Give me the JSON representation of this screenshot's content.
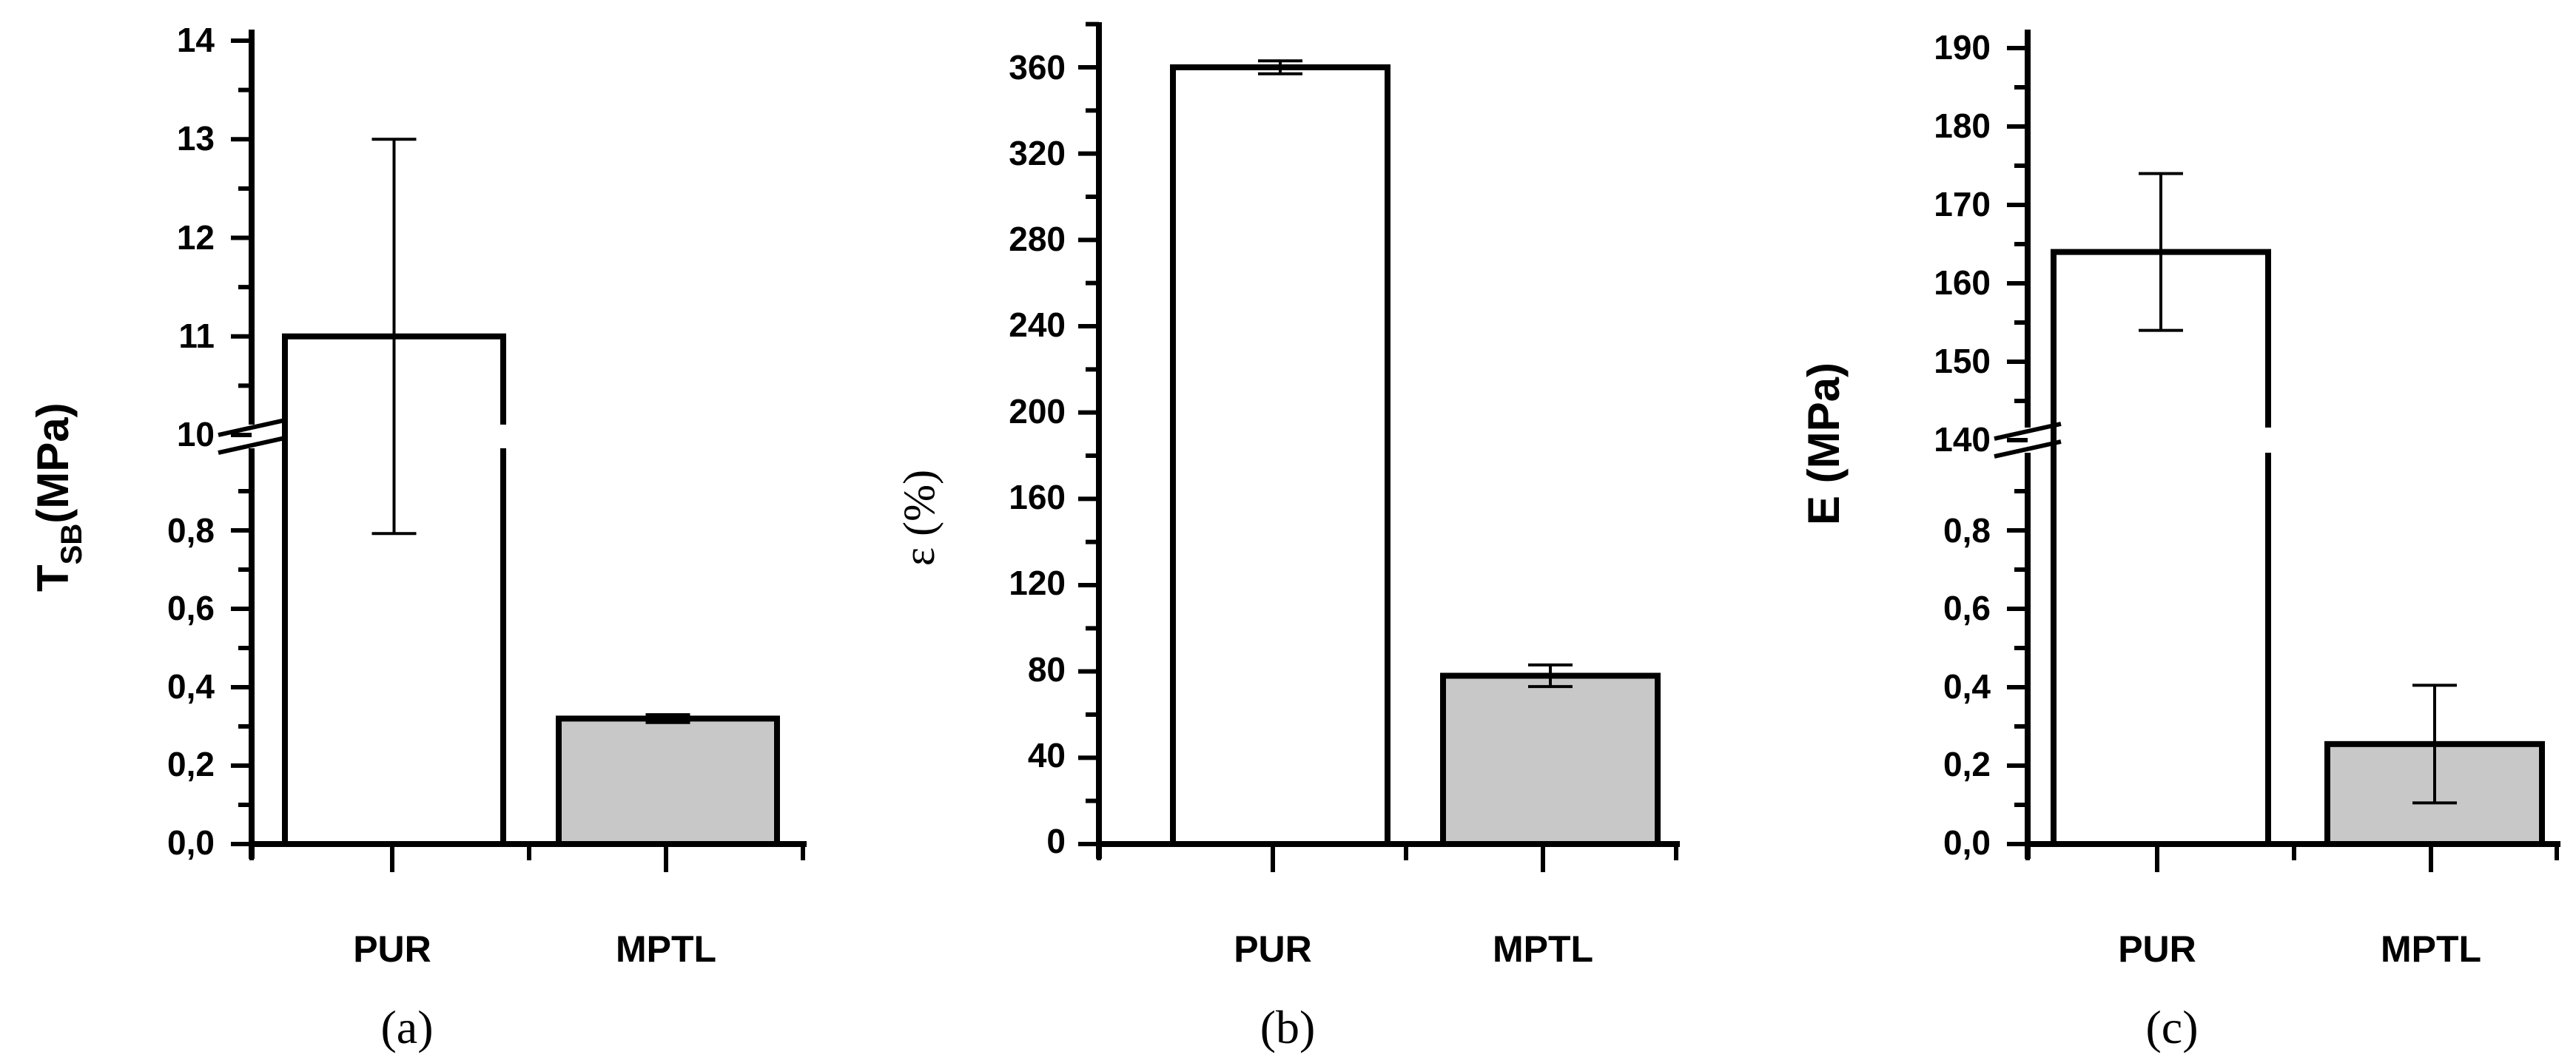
{
  "chart_data": [
    {
      "type": "bar",
      "panel_label": "(a)",
      "categories": [
        "PUR",
        "MPTL"
      ],
      "values": [
        11,
        0.32
      ],
      "errors": [
        2,
        0.01
      ],
      "colors": [
        "#ffffff",
        "#c8c8c8"
      ],
      "ylabel_main": "T",
      "ylabel_sub": "SB",
      "ylabel_unit": "(MPa)",
      "axis_break": true,
      "lower_range": [
        0,
        1.0
      ],
      "upper_range": [
        10,
        14
      ],
      "lower_ticks": [
        "0,0",
        "0,2",
        "0,4",
        "0,6",
        "0,8"
      ],
      "upper_ticks": [
        "10",
        "11",
        "12",
        "13",
        "14"
      ]
    },
    {
      "type": "bar",
      "panel_label": "(b)",
      "categories": [
        "PUR",
        "MPTL"
      ],
      "values": [
        360,
        78
      ],
      "errors": [
        3,
        5
      ],
      "colors": [
        "#ffffff",
        "#c8c8c8"
      ],
      "ylabel": "ε (%)",
      "ylim": [
        0,
        380
      ],
      "ticks": [
        "0",
        "40",
        "80",
        "120",
        "160",
        "200",
        "240",
        "280",
        "320",
        "360"
      ]
    },
    {
      "type": "bar",
      "panel_label": "(c)",
      "categories": [
        "PUR",
        "MPTL"
      ],
      "values": [
        164,
        0.255
      ],
      "errors": [
        10,
        0.15
      ],
      "colors": [
        "#ffffff",
        "#c8c8c8"
      ],
      "ylabel": "E (MPa)",
      "axis_break": true,
      "lower_range": [
        0,
        1.0
      ],
      "upper_range": [
        140,
        190
      ],
      "lower_ticks": [
        "0,0",
        "0,2",
        "0,4",
        "0,6",
        "0,8"
      ],
      "upper_ticks": [
        "140",
        "150",
        "160",
        "170",
        "180",
        "190"
      ]
    }
  ]
}
